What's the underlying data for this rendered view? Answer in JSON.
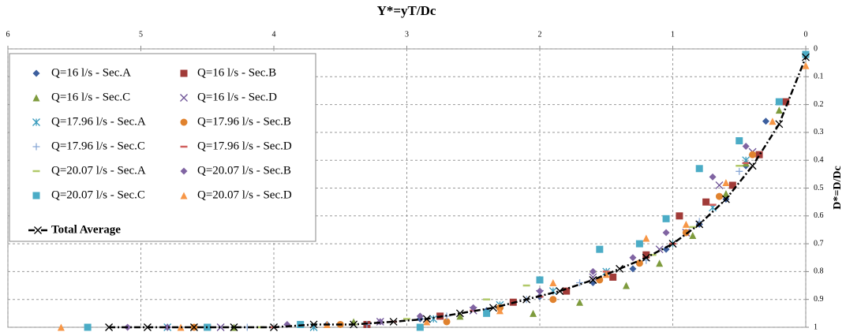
{
  "chart_data": {
    "type": "scatter",
    "title": "Y*=yT/Dc",
    "y_label": "D*=D/Dc",
    "xlim": [
      6,
      0
    ],
    "xticks": [
      6,
      5,
      4,
      3,
      2,
      1,
      0
    ],
    "ylim": [
      1,
      0
    ],
    "yticks": [
      0,
      0.1,
      0.2,
      0.3,
      0.4,
      0.5,
      0.6,
      0.7,
      0.8,
      0.9,
      1
    ],
    "grid": true,
    "legend": "upper left",
    "series": [
      {
        "name": "Q=16 l/s - Sec.A",
        "color": "#3d5f9e",
        "marker": "diamond",
        "x": [
          4.8,
          3.6,
          2.9,
          2.4,
          2.0,
          1.6,
          1.3,
          1.05,
          0.8,
          0.6,
          0.45,
          0.3
        ],
        "y": [
          1.0,
          0.99,
          0.97,
          0.94,
          0.89,
          0.84,
          0.79,
          0.72,
          0.63,
          0.54,
          0.42,
          0.26
        ]
      },
      {
        "name": "Q=16 l/s - Sec.B",
        "color": "#a13b38",
        "marker": "square",
        "x": [
          4.5,
          3.3,
          2.75,
          2.2,
          1.8,
          1.45,
          1.2,
          0.95,
          0.75,
          0.55,
          0.35,
          0.15
        ],
        "y": [
          1.0,
          0.99,
          0.96,
          0.91,
          0.87,
          0.82,
          0.74,
          0.6,
          0.55,
          0.49,
          0.38,
          0.19
        ]
      },
      {
        "name": "Q=16 l/s - Sec.C",
        "color": "#7e9b3d",
        "marker": "triangle",
        "x": [
          4.3,
          3.4,
          2.6,
          2.05,
          1.7,
          1.35,
          1.1,
          0.85,
          0.6,
          0.45,
          0.2
        ],
        "y": [
          1.0,
          0.98,
          0.96,
          0.95,
          0.91,
          0.85,
          0.77,
          0.67,
          0.52,
          0.41,
          0.22
        ]
      },
      {
        "name": "Q=16 l/s - Sec.D",
        "color": "#6a4f94",
        "marker": "x",
        "x": [
          4.4,
          3.2,
          2.5,
          2.0,
          1.6,
          1.1,
          0.9,
          0.65,
          0.4
        ],
        "y": [
          1.0,
          0.98,
          0.94,
          0.88,
          0.82,
          0.72,
          0.66,
          0.49,
          0.37
        ]
      },
      {
        "name": "Q=17.96 l/s - Sec.A",
        "color": "#3a9cbd",
        "marker": "asterisk",
        "x": [
          4.8,
          3.7,
          2.8,
          2.3,
          1.9,
          1.5,
          1.0,
          0.7,
          0.45
        ],
        "y": [
          1.0,
          1.0,
          0.97,
          0.92,
          0.87,
          0.8,
          0.7,
          0.57,
          0.4
        ]
      },
      {
        "name": "Q=17.96 l/s - Sec.B",
        "color": "#e0822e",
        "marker": "circle",
        "x": [
          4.6,
          3.5,
          2.7,
          2.3,
          1.9,
          1.55,
          1.25,
          0.9,
          0.65,
          0.4
        ],
        "y": [
          1.0,
          0.99,
          0.98,
          0.93,
          0.9,
          0.83,
          0.77,
          0.66,
          0.53,
          0.38
        ]
      },
      {
        "name": "Q=17.96 l/s - Sec.C",
        "color": "#8aa9d6",
        "marker": "plus",
        "x": [
          4.2,
          3.3,
          2.7,
          2.1,
          1.7,
          1.2,
          0.8,
          0.5
        ],
        "y": [
          1.0,
          0.99,
          0.96,
          0.9,
          0.84,
          0.76,
          0.62,
          0.44
        ]
      },
      {
        "name": "Q=17.96 l/s - Sec.D",
        "color": "#d0605e",
        "marker": "dash",
        "x": [
          4.0,
          3.1,
          2.5,
          2.0,
          1.5,
          1.0,
          0.7,
          0.45
        ],
        "y": [
          1.0,
          0.98,
          0.94,
          0.89,
          0.8,
          0.7,
          0.56,
          0.41
        ]
      },
      {
        "name": "Q=20.07 l/s - Sec.A",
        "color": "#b1c96a",
        "marker": "dash",
        "x": [
          4.1,
          3.0,
          2.4,
          2.1,
          1.6,
          1.15,
          0.85,
          0.5
        ],
        "y": [
          1.0,
          0.97,
          0.9,
          0.85,
          0.8,
          0.74,
          0.64,
          0.42
        ]
      },
      {
        "name": "Q=20.07 l/s - Sec.B",
        "color": "#8064a2",
        "marker": "diamond",
        "x": [
          5.1,
          4.8,
          3.9,
          3.2,
          2.9,
          2.5,
          2.0,
          1.6,
          1.3,
          1.05,
          0.7,
          0.45
        ],
        "y": [
          1.0,
          1.0,
          0.99,
          0.98,
          0.96,
          0.93,
          0.87,
          0.8,
          0.75,
          0.66,
          0.46,
          0.35
        ]
      },
      {
        "name": "Q=20.07 l/s - Sec.C",
        "color": "#4bacc6",
        "marker": "square",
        "x": [
          5.4,
          4.5,
          3.8,
          2.9,
          2.4,
          2.0,
          1.55,
          1.25,
          1.05,
          0.8,
          0.5,
          0.2,
          0.0
        ],
        "y": [
          1.0,
          1.0,
          0.99,
          1.0,
          0.95,
          0.83,
          0.72,
          0.7,
          0.61,
          0.43,
          0.33,
          0.19,
          0.02
        ]
      },
      {
        "name": "Q=20.07 l/s - Sec.D",
        "color": "#f79646",
        "marker": "triangle",
        "x": [
          5.6,
          4.7,
          3.6,
          2.85,
          2.3,
          1.9,
          1.5,
          1.2,
          0.9,
          0.6,
          0.25,
          0.0
        ],
        "y": [
          1.0,
          1.0,
          0.99,
          0.98,
          0.94,
          0.84,
          0.81,
          0.68,
          0.63,
          0.48,
          0.26,
          0.06
        ]
      },
      {
        "name": "Total Average",
        "color": "#000000",
        "marker": "x",
        "line": "dashdot",
        "x": [
          5.24,
          4.95,
          4.6,
          4.3,
          4.0,
          3.7,
          3.4,
          3.1,
          2.85,
          2.6,
          2.35,
          2.1,
          1.85,
          1.6,
          1.4,
          1.2,
          1.0,
          0.8,
          0.6,
          0.4,
          0.2,
          0.0
        ],
        "y": [
          1.0,
          1.0,
          1.0,
          1.0,
          1.0,
          0.99,
          0.99,
          0.98,
          0.97,
          0.95,
          0.93,
          0.9,
          0.87,
          0.83,
          0.79,
          0.75,
          0.7,
          0.63,
          0.54,
          0.42,
          0.27,
          0.03
        ]
      }
    ]
  }
}
